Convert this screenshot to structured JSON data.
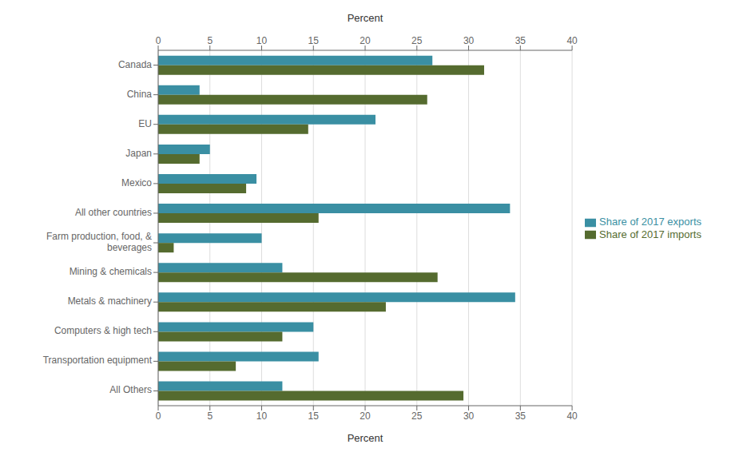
{
  "chart_data": {
    "type": "bar",
    "orientation": "horizontal",
    "categories": [
      "Canada",
      "China",
      "EU",
      "Japan",
      "Mexico",
      "All other countries",
      "Farm production, food, &\nbeverages",
      "Mining & chemicals",
      "Metals & machinery",
      "Computers & high tech",
      "Transportation equipment",
      "All Others"
    ],
    "series": [
      {
        "name": "Share of 2017 exports",
        "color": "#3a8fa3",
        "values": [
          26.5,
          4.0,
          21.0,
          5.0,
          9.5,
          34.0,
          10.0,
          12.0,
          34.5,
          15.0,
          15.5,
          12.0
        ]
      },
      {
        "name": "Share of 2017 imports",
        "color": "#556b2f",
        "values": [
          31.5,
          26.0,
          14.5,
          4.0,
          8.5,
          15.5,
          1.5,
          27.0,
          22.0,
          12.0,
          7.5,
          29.5
        ]
      }
    ],
    "xlabel": "Percent",
    "xlim": [
      0,
      40
    ],
    "xticks": [
      0,
      5,
      10,
      15,
      20,
      25,
      30,
      35,
      40
    ],
    "grid": true,
    "legend": "right"
  }
}
